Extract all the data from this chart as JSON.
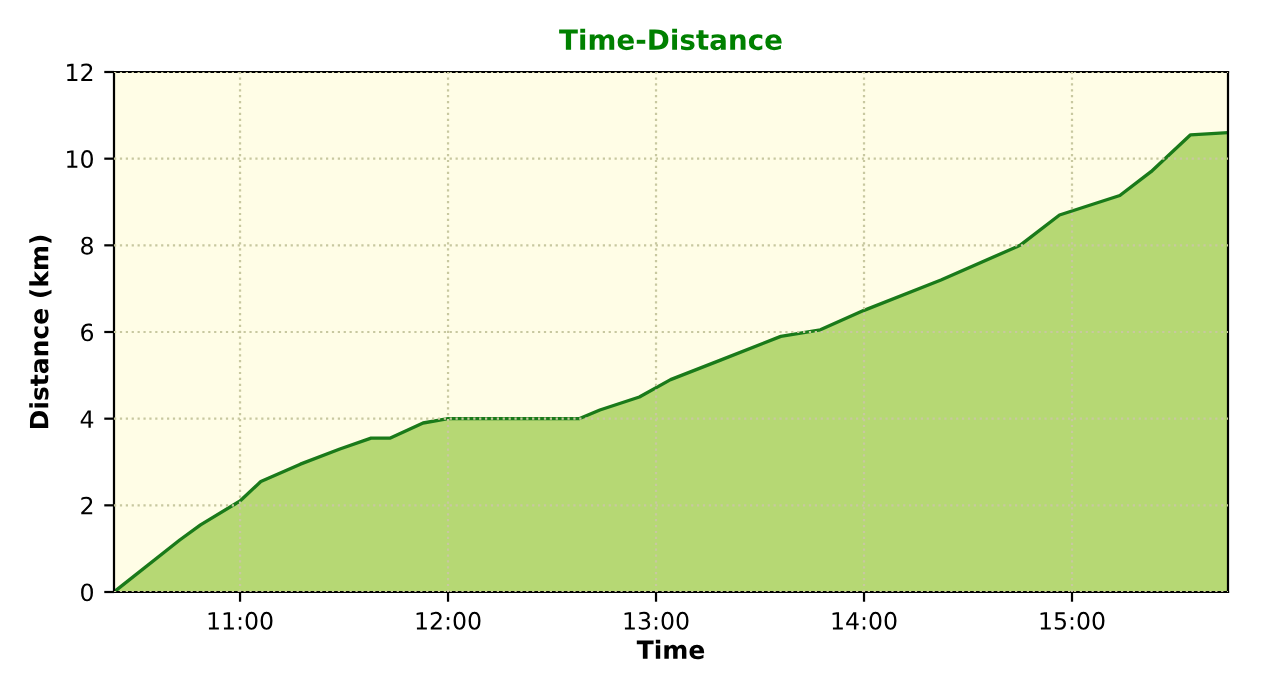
{
  "chart_data": {
    "type": "area",
    "title": "Time-Distance",
    "xlabel": "Time",
    "ylabel": "Distance (km)",
    "x": [
      10.394,
      10.71,
      10.81,
      11.0,
      11.1,
      11.29,
      11.48,
      11.63,
      11.72,
      11.88,
      12.0,
      12.63,
      12.73,
      12.92,
      13.07,
      13.31,
      13.6,
      13.79,
      14.0,
      14.37,
      14.75,
      14.94,
      15.23,
      15.38,
      15.57,
      15.75
    ],
    "series": [
      {
        "color": "#1a7a1a",
        "values": [
          0,
          1.2,
          1.55,
          2.1,
          2.55,
          2.95,
          3.3,
          3.55,
          3.55,
          3.9,
          4.0,
          4.0,
          4.2,
          4.5,
          4.9,
          5.35,
          5.9,
          6.05,
          6.5,
          7.2,
          8.0,
          8.7,
          9.15,
          9.7,
          10.55,
          10.6
        ]
      }
    ],
    "xlim": [
      10.394,
      15.75
    ],
    "ylim": [
      0,
      12
    ],
    "xticks": [
      {
        "value": 11,
        "label": "11:00"
      },
      {
        "value": 12,
        "label": "12:00"
      },
      {
        "value": 13,
        "label": "13:00"
      },
      {
        "value": 14,
        "label": "14:00"
      },
      {
        "value": 15,
        "label": "15:00"
      }
    ],
    "yticks": [
      0,
      2,
      4,
      6,
      8,
      10,
      12
    ],
    "grid": true
  }
}
